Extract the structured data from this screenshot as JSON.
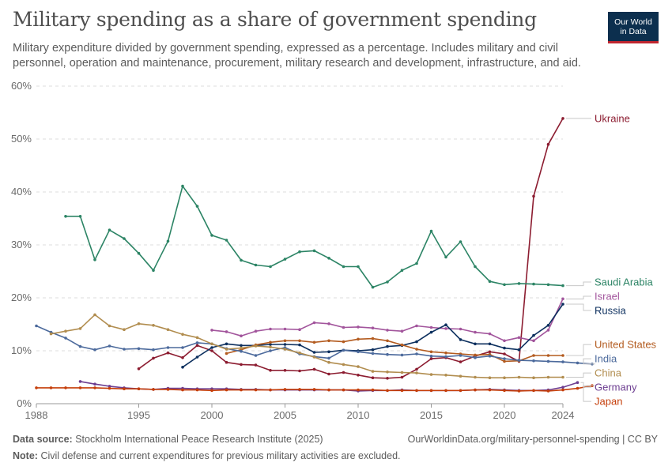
{
  "title": "Military spending as a share of government spending",
  "subtitle": "Military expenditure divided by government spending, expressed as a percentage. Includes military and civil personnel, operation and maintenance, procurement, military research and development, infrastructure, and aid.",
  "logo": {
    "line1": "Our World",
    "line2": "in Data",
    "bg": "#0c2f4e",
    "accent": "#c0262f"
  },
  "footer": {
    "source_label": "Data source:",
    "source_text": "Stockholm International Peace Research Institute (2025)",
    "url": "OurWorldinData.org/military-personnel-spending | CC BY",
    "note_label": "Note:",
    "note_text": "Civil defense and current expenditures for previous military activities are excluded."
  },
  "chart_data": {
    "type": "line",
    "xlim": [
      1988,
      2024
    ],
    "ylim": [
      0,
      60
    ],
    "x_ticks": [
      1988,
      1995,
      2000,
      2005,
      2010,
      2015,
      2020,
      2024
    ],
    "y_ticks": [
      0,
      10,
      20,
      30,
      40,
      50,
      60
    ],
    "y_tick_labels": [
      "0%",
      "10%",
      "20%",
      "30%",
      "40%",
      "50%",
      "60%"
    ],
    "grid": "horizontal dashed",
    "legend": "right-end labels",
    "series": [
      {
        "name": "Ukraine",
        "color": "#8c1c30",
        "start": 1995,
        "values": [
          6.6,
          8.6,
          9.6,
          8.7,
          11.0,
          10.0,
          7.8,
          7.4,
          7.3,
          6.3,
          6.3,
          6.2,
          6.5,
          5.6,
          5.9,
          5.4,
          4.9,
          4.8,
          5.0,
          6.5,
          8.5,
          8.7,
          7.9,
          9.0,
          9.8,
          9.4,
          8.0,
          39.2,
          49.0,
          53.9
        ]
      },
      {
        "name": "Saudi Arabia",
        "color": "#2c8465",
        "start": 1990,
        "values": [
          35.4,
          35.4,
          27.2,
          32.8,
          31.2,
          28.4,
          25.2,
          30.7,
          41.1,
          37.3,
          31.8,
          30.9,
          27.1,
          26.2,
          25.9,
          27.3,
          28.7,
          28.9,
          27.5,
          25.9,
          25.9,
          22.0,
          23.0,
          25.2,
          26.5,
          32.6,
          27.7,
          30.6,
          25.9,
          23.1,
          22.5,
          22.7,
          22.6,
          22.5,
          22.3
        ]
      },
      {
        "name": "Israel",
        "color": "#a2559c",
        "start": 2000,
        "values": [
          13.9,
          13.6,
          12.8,
          13.7,
          14.1,
          14.1,
          14.0,
          15.3,
          15.1,
          14.4,
          14.5,
          14.3,
          13.9,
          13.7,
          14.7,
          14.4,
          14.2,
          14.1,
          13.5,
          13.2,
          11.9,
          12.5,
          11.9,
          13.9,
          19.8
        ]
      },
      {
        "name": "Russia",
        "color": "#0c2f5e",
        "start": 1998,
        "values": [
          6.9,
          8.8,
          10.6,
          11.3,
          11.0,
          11.0,
          11.2,
          11.2,
          11.1,
          9.7,
          9.8,
          10.1,
          10.0,
          10.2,
          10.8,
          11.0,
          11.7,
          13.5,
          14.9,
          12.1,
          11.3,
          11.3,
          10.5,
          10.2,
          12.9,
          14.8,
          18.8
        ]
      },
      {
        "name": "United States",
        "color": "#b35b1f",
        "start": 2001,
        "values": [
          9.5,
          10.2,
          11.1,
          11.6,
          11.9,
          11.9,
          11.6,
          11.9,
          11.7,
          12.2,
          12.3,
          11.9,
          11.1,
          10.3,
          9.8,
          9.6,
          9.4,
          9.2,
          9.3,
          8.0,
          8.1,
          9.1,
          9.1,
          9.1
        ]
      },
      {
        "name": "India",
        "color": "#4c6a9c",
        "start": 1988,
        "values": [
          14.7,
          13.5,
          12.4,
          10.8,
          10.2,
          10.9,
          10.3,
          10.4,
          10.2,
          10.6,
          10.6,
          11.5,
          11.3,
          10.4,
          9.9,
          9.1,
          10.0,
          10.6,
          9.4,
          8.9,
          8.6,
          10.1,
          9.8,
          9.5,
          9.3,
          9.2,
          9.4,
          9.0,
          8.9,
          9.1,
          8.7,
          9.0,
          8.5,
          8.2,
          8.1,
          8.0,
          7.9,
          7.7,
          7.5
        ]
      },
      {
        "name": "China",
        "color": "#b18d4f",
        "start": 1989,
        "values": [
          13.2,
          13.7,
          14.2,
          16.8,
          14.7,
          14.0,
          15.1,
          14.8,
          14.0,
          13.1,
          12.5,
          11.3,
          10.3,
          10.5,
          10.9,
          10.7,
          10.3,
          9.6,
          8.8,
          7.8,
          7.4,
          7.0,
          6.1,
          6.0,
          5.9,
          5.8,
          5.5,
          5.4,
          5.2,
          5.0,
          4.9,
          4.9,
          5.0,
          4.9,
          5.0,
          5.0
        ]
      },
      {
        "name": "Germany",
        "color": "#6d3e91",
        "start": 1991,
        "values": [
          4.2,
          3.7,
          3.3,
          3.0,
          2.8,
          2.7,
          2.9,
          2.9,
          2.8,
          2.8,
          2.8,
          2.7,
          2.7,
          2.6,
          2.6,
          2.6,
          2.6,
          2.6,
          2.6,
          2.4,
          2.5,
          2.5,
          2.6,
          2.5,
          2.5,
          2.5,
          2.5,
          2.6,
          2.7,
          2.6,
          2.5,
          2.5,
          2.6,
          3.1,
          4.0
        ]
      },
      {
        "name": "Japan",
        "color": "#c53e0a",
        "start": 1988,
        "values": [
          3.0,
          3.0,
          3.0,
          3.0,
          3.0,
          2.9,
          2.8,
          2.8,
          2.7,
          2.7,
          2.6,
          2.6,
          2.5,
          2.6,
          2.6,
          2.6,
          2.6,
          2.7,
          2.7,
          2.7,
          2.6,
          2.6,
          2.6,
          2.6,
          2.5,
          2.5,
          2.5,
          2.5,
          2.5,
          2.5,
          2.6,
          2.6,
          2.5,
          2.4,
          2.5,
          2.4,
          2.6,
          2.9,
          3.4
        ]
      }
    ]
  }
}
